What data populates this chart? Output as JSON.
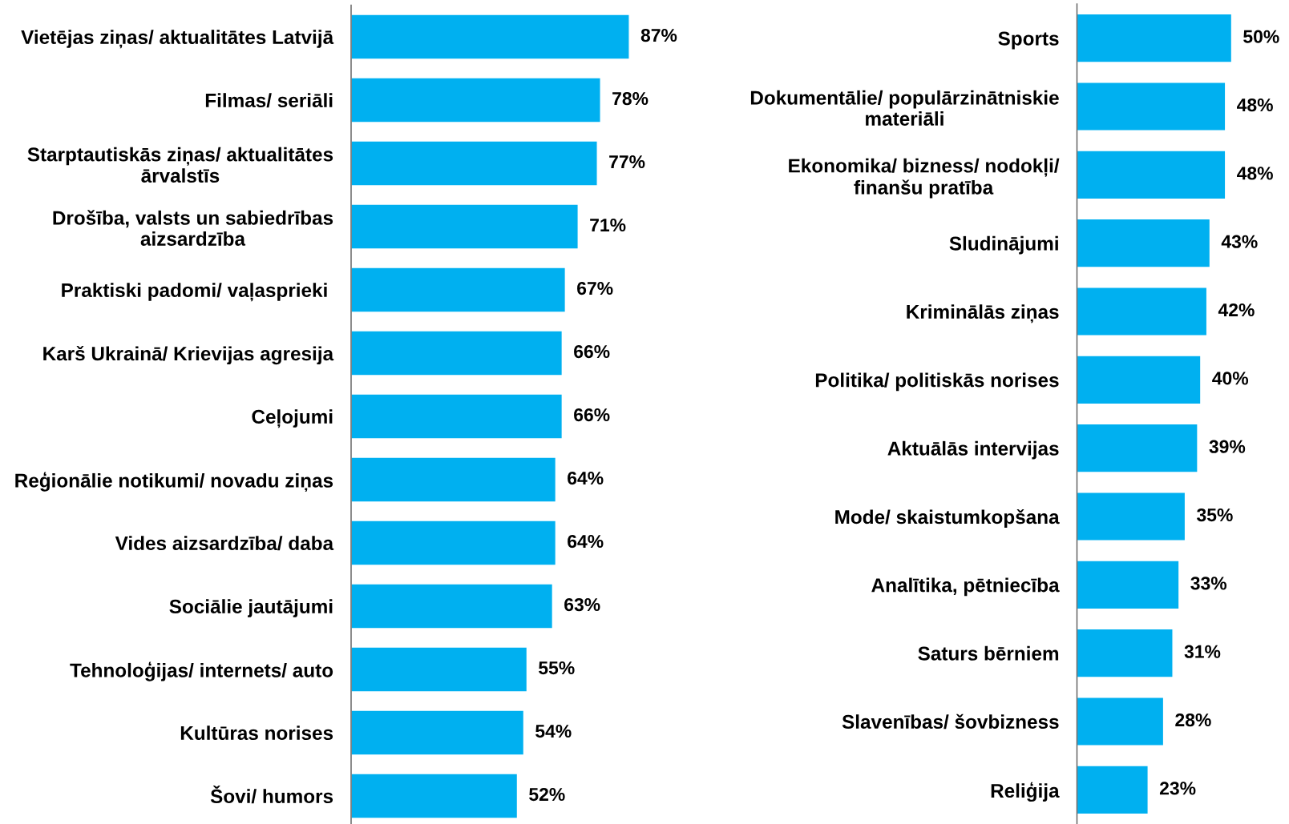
{
  "chart_data": [
    {
      "type": "bar",
      "orientation": "horizontal",
      "color": "#00b0f0",
      "categories": [
        "Vietējas ziņas/ aktualitātes Latvijā",
        "Filmas/ seriāli",
        "Starptautiskās ziņas/ aktualitātes\nārvalstīs",
        "Drošība, valsts un sabiedrības\naizsardzība",
        "Praktiski padomi/ vaļasprieki ",
        "Karš Ukrainā/ Krievijas agresija",
        "Ceļojumi",
        "Reģionālie notikumi/ novadu ziņas",
        "Vides aizsardzība/ daba",
        "Sociālie jautājumi",
        "Tehnoloģijas/ internets/ auto",
        "Kultūras norises",
        "Šovi/ humors"
      ],
      "values": [
        87,
        78,
        77,
        71,
        67,
        66,
        66,
        64,
        64,
        63,
        55,
        54,
        52
      ],
      "value_labels": [
        "87%",
        "78%",
        "77%",
        "71%",
        "67%",
        "66%",
        "66%",
        "64%",
        "64%",
        "63%",
        "55%",
        "54%",
        "52%"
      ]
    },
    {
      "type": "bar",
      "orientation": "horizontal",
      "color": "#00b0f0",
      "categories": [
        "Sports",
        "Dokumentālie/ populārzinātniskie\nmateriāli",
        "Ekonomika/ bizness/ nodokļi/\nfinanšu pratība",
        "Sludinājumi",
        "Kriminālās ziņas",
        "Politika/ politiskās norises",
        "Aktuālās intervijas",
        "Mode/ skaistumkopšana",
        "Analītika, pētniecība",
        "Saturs bērniem",
        "Slavenības/ šovbizness",
        "Reliģija"
      ],
      "values": [
        50,
        48,
        48,
        43,
        42,
        40,
        39,
        35,
        33,
        31,
        28,
        23
      ],
      "value_labels": [
        "50%",
        "48%",
        "48%",
        "43%",
        "42%",
        "40%",
        "39%",
        "35%",
        "33%",
        "31%",
        "28%",
        "23%"
      ]
    }
  ]
}
